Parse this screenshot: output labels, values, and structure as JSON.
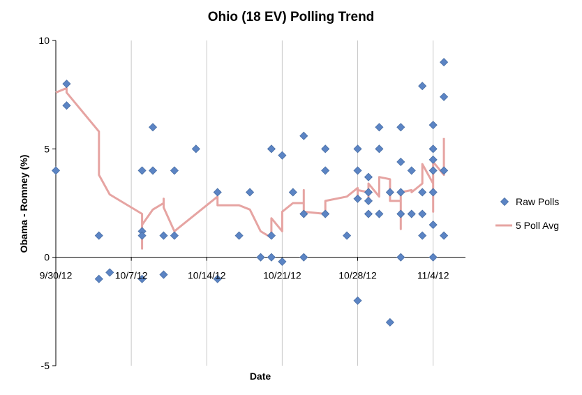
{
  "chart_data": {
    "type": "scatter",
    "title": "Ohio (18 EV) Polling Trend",
    "xlabel": "Date",
    "ylabel": "Obama - Romney (%)",
    "ylim": [
      -5,
      10
    ],
    "yticks": [
      -5,
      0,
      5,
      10
    ],
    "xlim": [
      "9/30/12",
      "11/7/12"
    ],
    "xticks": [
      "9/30/12",
      "10/7/12",
      "10/14/12",
      "10/21/12",
      "10/28/12",
      "11/4/12"
    ],
    "grid": "vertical",
    "legend_position": "right",
    "colors": {
      "raw": "#5b84c4",
      "raw_edge": "#4a6fa5",
      "avg": "#e6a4a2"
    },
    "series": [
      {
        "name": "Raw Polls",
        "type": "scatter",
        "points": [
          [
            "9/30/12",
            4.0
          ],
          [
            "10/1/12",
            8.0
          ],
          [
            "10/1/12",
            7.0
          ],
          [
            "10/4/12",
            1.0
          ],
          [
            "10/4/12",
            -1.0
          ],
          [
            "10/5/12",
            -0.7
          ],
          [
            "10/8/12",
            4.0
          ],
          [
            "10/8/12",
            1.2
          ],
          [
            "10/8/12",
            1.0
          ],
          [
            "10/8/12",
            -1.0
          ],
          [
            "10/9/12",
            6.0
          ],
          [
            "10/9/12",
            4.0
          ],
          [
            "10/10/12",
            1.0
          ],
          [
            "10/10/12",
            -0.8
          ],
          [
            "10/11/12",
            4.0
          ],
          [
            "10/11/12",
            1.0
          ],
          [
            "10/13/12",
            5.0
          ],
          [
            "10/15/12",
            3.0
          ],
          [
            "10/15/12",
            -1.0
          ],
          [
            "10/17/12",
            1.0
          ],
          [
            "10/18/12",
            3.0
          ],
          [
            "10/19/12",
            0.0
          ],
          [
            "10/20/12",
            5.0
          ],
          [
            "10/20/12",
            1.0
          ],
          [
            "10/20/12",
            0.0
          ],
          [
            "10/21/12",
            4.7
          ],
          [
            "10/21/12",
            -0.2
          ],
          [
            "10/22/12",
            3.0
          ],
          [
            "10/23/12",
            5.6
          ],
          [
            "10/23/12",
            2.0
          ],
          [
            "10/23/12",
            0.0
          ],
          [
            "10/25/12",
            5.0
          ],
          [
            "10/25/12",
            4.0
          ],
          [
            "10/25/12",
            2.0
          ],
          [
            "10/27/12",
            1.0
          ],
          [
            "10/28/12",
            5.0
          ],
          [
            "10/28/12",
            4.0
          ],
          [
            "10/28/12",
            2.7
          ],
          [
            "10/28/12",
            -2.0
          ],
          [
            "10/29/12",
            3.7
          ],
          [
            "10/29/12",
            3.0
          ],
          [
            "10/29/12",
            2.6
          ],
          [
            "10/29/12",
            2.0
          ],
          [
            "10/30/12",
            6.0
          ],
          [
            "10/30/12",
            5.0
          ],
          [
            "10/30/12",
            2.0
          ],
          [
            "10/31/12",
            3.0
          ],
          [
            "10/31/12",
            -3.0
          ],
          [
            "11/1/12",
            6.0
          ],
          [
            "11/1/12",
            4.4
          ],
          [
            "11/1/12",
            3.0
          ],
          [
            "11/1/12",
            2.0
          ],
          [
            "11/1/12",
            0.0
          ],
          [
            "11/2/12",
            4.0
          ],
          [
            "11/2/12",
            2.0
          ],
          [
            "11/3/12",
            7.9
          ],
          [
            "11/3/12",
            3.0
          ],
          [
            "11/3/12",
            2.0
          ],
          [
            "11/3/12",
            1.0
          ],
          [
            "11/4/12",
            6.1
          ],
          [
            "11/4/12",
            5.0
          ],
          [
            "11/4/12",
            4.5
          ],
          [
            "11/4/12",
            4.0
          ],
          [
            "11/4/12",
            3.0
          ],
          [
            "11/4/12",
            1.5
          ],
          [
            "11/4/12",
            0.0
          ],
          [
            "11/5/12",
            9.0
          ],
          [
            "11/5/12",
            7.4
          ],
          [
            "11/5/12",
            4.0
          ],
          [
            "11/5/12",
            1.0
          ]
        ]
      },
      {
        "name": "5 Poll Avg",
        "type": "line",
        "points": [
          [
            "9/30/12",
            7.6
          ],
          [
            "10/1/12",
            7.8
          ],
          [
            "10/1/12",
            7.6
          ],
          [
            "10/4/12",
            5.8
          ],
          [
            "10/4/12",
            3.8
          ],
          [
            "10/5/12",
            2.9
          ],
          [
            "10/8/12",
            2.0
          ],
          [
            "10/8/12",
            0.4
          ],
          [
            "10/8/12",
            1.5
          ],
          [
            "10/9/12",
            2.2
          ],
          [
            "10/10/12",
            2.5
          ],
          [
            "10/10/12",
            2.7
          ],
          [
            "10/10/12",
            2.3
          ],
          [
            "10/11/12",
            1.2
          ],
          [
            "10/15/12",
            2.8
          ],
          [
            "10/15/12",
            2.4
          ],
          [
            "10/17/12",
            2.4
          ],
          [
            "10/18/12",
            2.2
          ],
          [
            "10/19/12",
            1.2
          ],
          [
            "10/20/12",
            0.9
          ],
          [
            "10/20/12",
            1.8
          ],
          [
            "10/21/12",
            1.2
          ],
          [
            "10/21/12",
            2.1
          ],
          [
            "10/22/12",
            2.5
          ],
          [
            "10/23/12",
            2.5
          ],
          [
            "10/23/12",
            3.1
          ],
          [
            "10/23/12",
            2.1
          ],
          [
            "10/25/12",
            2.0
          ],
          [
            "10/25/12",
            2.6
          ],
          [
            "10/27/12",
            2.8
          ],
          [
            "10/28/12",
            3.2
          ],
          [
            "10/28/12",
            2.6
          ],
          [
            "10/28/12",
            3.1
          ],
          [
            "10/29/12",
            3.0
          ],
          [
            "10/29/12",
            2.6
          ],
          [
            "10/29/12",
            3.4
          ],
          [
            "10/30/12",
            2.8
          ],
          [
            "10/30/12",
            3.7
          ],
          [
            "10/31/12",
            3.6
          ],
          [
            "10/31/12",
            2.6
          ],
          [
            "11/1/12",
            2.6
          ],
          [
            "11/1/12",
            1.3
          ],
          [
            "11/1/12",
            3.0
          ],
          [
            "11/2/12",
            3.1
          ],
          [
            "11/2/12",
            3.0
          ],
          [
            "11/3/12",
            3.4
          ],
          [
            "11/3/12",
            4.3
          ],
          [
            "11/4/12",
            3.4
          ],
          [
            "11/4/12",
            2.1
          ],
          [
            "11/4/12",
            4.4
          ],
          [
            "11/5/12",
            3.8
          ],
          [
            "11/5/12",
            5.5
          ]
        ]
      }
    ]
  }
}
